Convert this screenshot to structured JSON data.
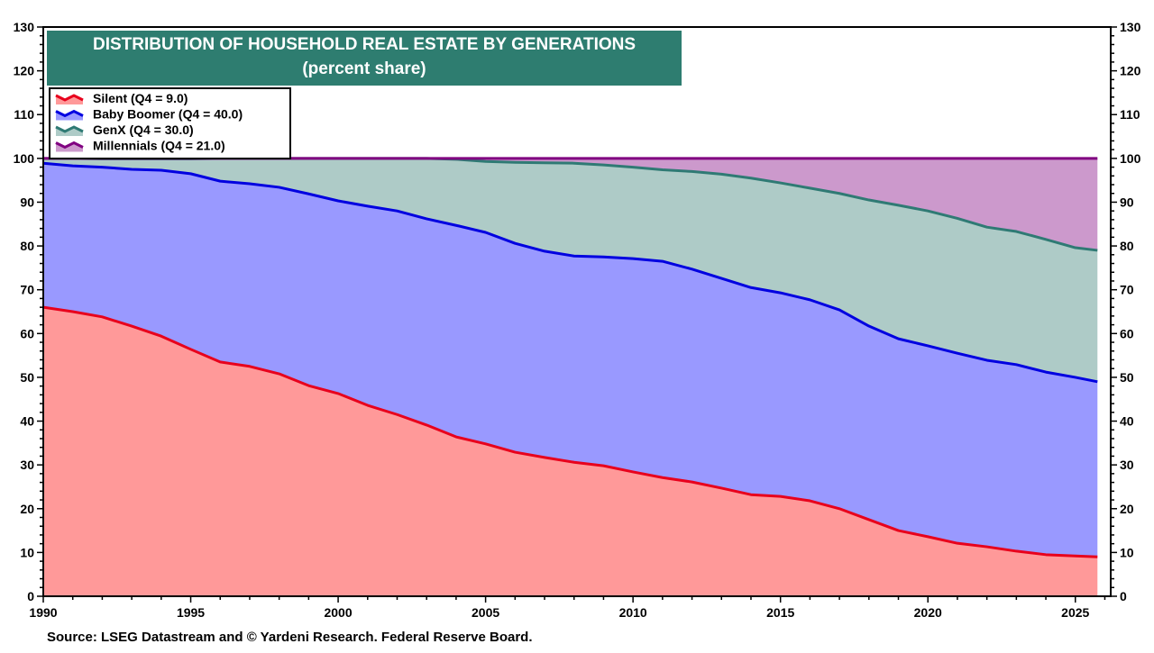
{
  "chart_data": {
    "type": "area",
    "stacked": true,
    "title": "DISTRIBUTION OF HOUSEHOLD REAL ESTATE BY GENERATIONS",
    "subtitle": "(percent share)",
    "source": "Source: LSEG Datastream and © Yardeni Research. Federal Reserve Board.",
    "xlim": [
      1990,
      2026.2
    ],
    "ylim": [
      0,
      130
    ],
    "x_ticks": [
      1990,
      1995,
      2000,
      2005,
      2010,
      2015,
      2020,
      2025
    ],
    "y_ticks": [
      0,
      10,
      20,
      30,
      40,
      50,
      60,
      70,
      80,
      90,
      100,
      110,
      120,
      130
    ],
    "legend_position": "top-left",
    "grid": false,
    "x": [
      1990,
      1991,
      1992,
      1993,
      1994,
      1995,
      1996,
      1997,
      1998,
      1999,
      2000,
      2001,
      2002,
      2003,
      2004,
      2005,
      2006,
      2007,
      2008,
      2009,
      2010,
      2011,
      2012,
      2013,
      2014,
      2015,
      2016,
      2017,
      2018,
      2019,
      2020,
      2021,
      2022,
      2023,
      2024,
      2025,
      2025.75
    ],
    "series": [
      {
        "name": "Silent (Q4 = 9.0)",
        "fill": "#ff9999",
        "line": "#e8001c",
        "values": [
          66,
          65,
          63.8,
          61.7,
          59.4,
          56.4,
          53.5,
          52.5,
          50.8,
          48.1,
          46.3,
          43.6,
          41.5,
          39.1,
          36.4,
          34.8,
          32.9,
          31.7,
          30.6,
          29.8,
          28.4,
          27.1,
          26.1,
          24.7,
          23.2,
          22.8,
          21.8,
          20,
          17.5,
          15,
          13.6,
          12.1,
          11.3,
          10.3,
          9.5,
          9.2,
          9.0
        ]
      },
      {
        "name": "Baby Boomer (Q4 = 40.0)",
        "fill": "#9999ff",
        "line": "#0000e0",
        "values": [
          32.9,
          33.3,
          34.2,
          35.8,
          37.9,
          40.1,
          41.3,
          41.7,
          42.6,
          43.8,
          44,
          45.5,
          46.5,
          47.1,
          48.3,
          48.3,
          47.7,
          47.1,
          47.1,
          47.7,
          48.7,
          49.4,
          48.6,
          47.9,
          47.3,
          46.5,
          45.9,
          45.4,
          44.2,
          43.8,
          43.6,
          43.4,
          42.6,
          42.6,
          41.7,
          40.8,
          40.0
        ]
      },
      {
        "name": "GenX (Q4 = 30.0)",
        "fill": "#aecbc7",
        "line": "#2f7a74",
        "values": [
          1.1,
          1.7,
          1.9,
          2.4,
          2.6,
          3.4,
          5.2,
          5.8,
          6.6,
          8.1,
          9.7,
          10.9,
          12,
          13.8,
          15.1,
          16.2,
          18.5,
          20.2,
          21.2,
          21,
          20.9,
          20.9,
          22.3,
          23.8,
          25,
          25.1,
          25.5,
          26.6,
          28.8,
          30.5,
          30.8,
          30.8,
          30.4,
          30.4,
          30.3,
          29.6,
          30.0
        ]
      },
      {
        "name": "Millennials (Q4 = 21.0)",
        "fill": "#cc99cc",
        "line": "#800080",
        "values": [
          0,
          0,
          0.1,
          0.1,
          0.1,
          0.1,
          0,
          0,
          0,
          0,
          0,
          0,
          0,
          0,
          0.2,
          0.7,
          0.9,
          1,
          1.1,
          1.5,
          2,
          2.6,
          3,
          3.6,
          4.5,
          5.6,
          6.8,
          8,
          9.5,
          10.7,
          12,
          13.7,
          15.7,
          16.7,
          18.5,
          20.4,
          21.0
        ]
      }
    ]
  },
  "colors": {
    "title_bg": "#2e7d70",
    "title_text": "#ffffff"
  }
}
